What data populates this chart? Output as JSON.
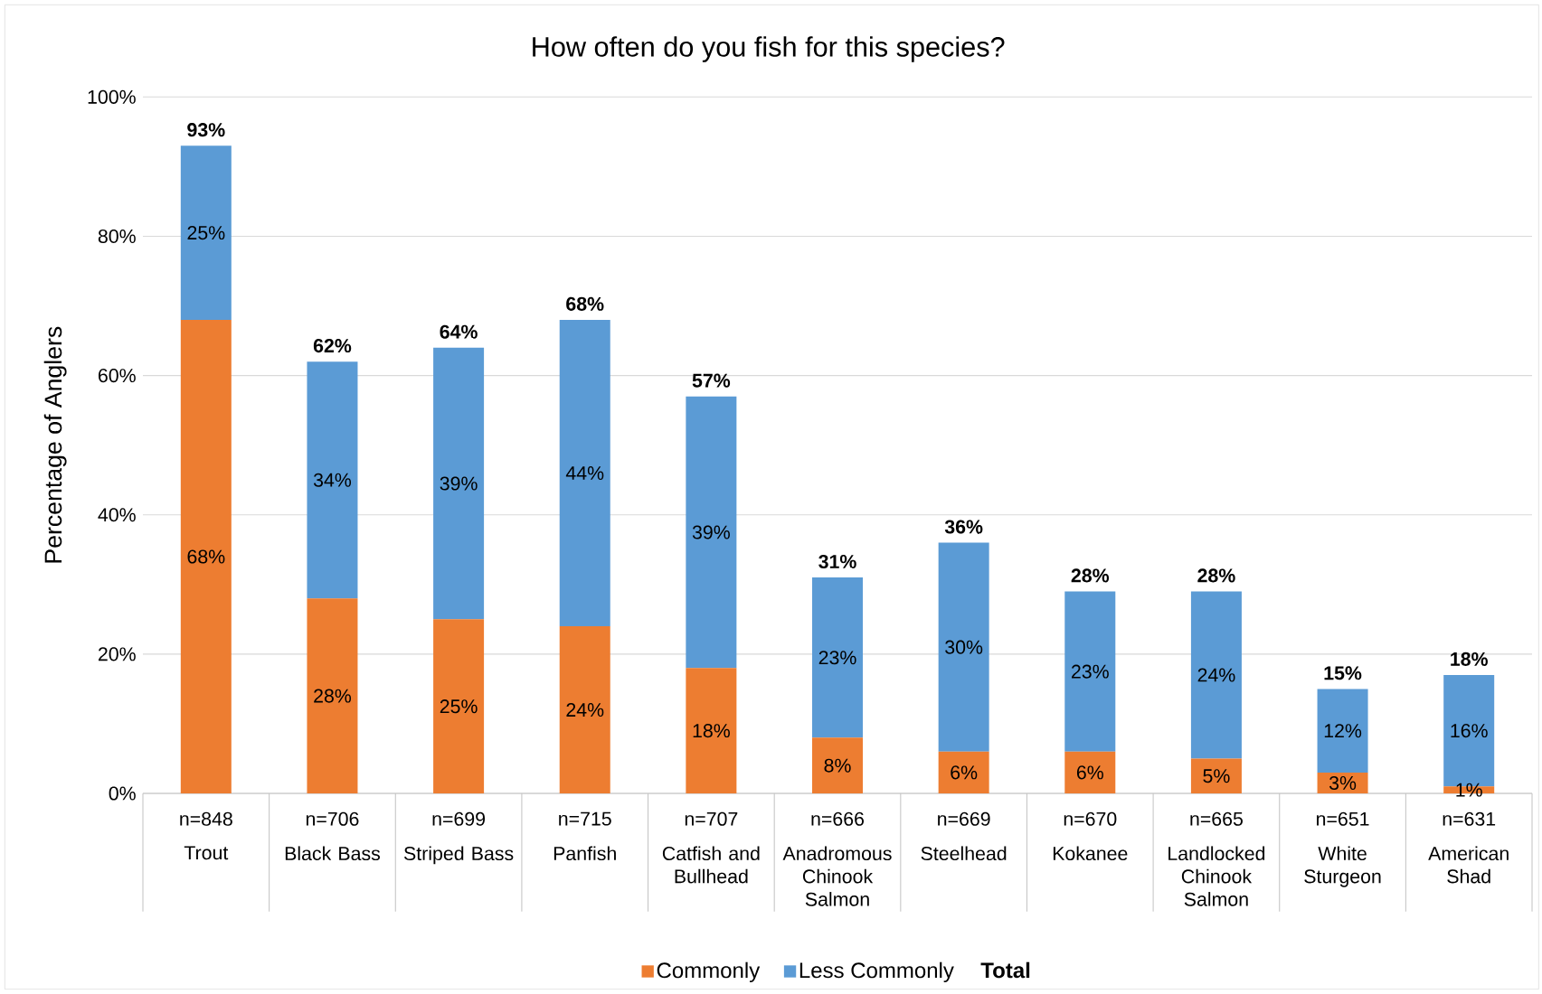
{
  "chart_data": {
    "type": "bar",
    "stacked": true,
    "title": "How often do you fish for this species?",
    "ylabel": "Percentage of Anglers",
    "categories": [
      "Trout",
      "Black Bass",
      "Striped Bass",
      "Panfish",
      "Catfish and Bullhead",
      "Anadromous Chinook Salmon",
      "Steelhead",
      "Kokanee",
      "Landlocked Chinook Salmon",
      "White Sturgeon",
      "American Shad"
    ],
    "series": [
      {
        "name": "Commonly",
        "color": "#ed7d31",
        "values": [
          68,
          28,
          25,
          24,
          18,
          8,
          6,
          6,
          5,
          3,
          1
        ],
        "value_labels": [
          "68%",
          "28%",
          "25%",
          "24%",
          "18%",
          "8%",
          "6%",
          "6%",
          "5%",
          "3%",
          "1%"
        ]
      },
      {
        "name": "Less Commonly",
        "color": "#5b9bd5",
        "values": [
          25,
          34,
          39,
          44,
          39,
          23,
          30,
          23,
          24,
          12,
          16
        ],
        "value_labels": [
          "25%",
          "34%",
          "39%",
          "44%",
          "39%",
          "23%",
          "30%",
          "23%",
          "24%",
          "12%",
          "16%"
        ]
      }
    ],
    "totals": [
      "93%",
      "62%",
      "64%",
      "68%",
      "57%",
      "31%",
      "36%",
      "28%",
      "28%",
      "15%",
      "18%"
    ],
    "ylim": [
      0,
      100
    ],
    "yticks": [
      {
        "value": 0,
        "label": "0%"
      },
      {
        "value": 20,
        "label": "20%"
      },
      {
        "value": 40,
        "label": "40%"
      },
      {
        "value": 60,
        "label": "60%"
      },
      {
        "value": 80,
        "label": "80%"
      },
      {
        "value": 100,
        "label": "100%"
      }
    ],
    "grid": "y",
    "legend": "bottom",
    "annotations": [
      "n=848",
      "n=706",
      "n=699",
      "n=715",
      "n=707",
      "n=666",
      "n=669",
      "n=670",
      "n=665",
      "n=651",
      "n=631",
      "**Total**"
    ]
  }
}
